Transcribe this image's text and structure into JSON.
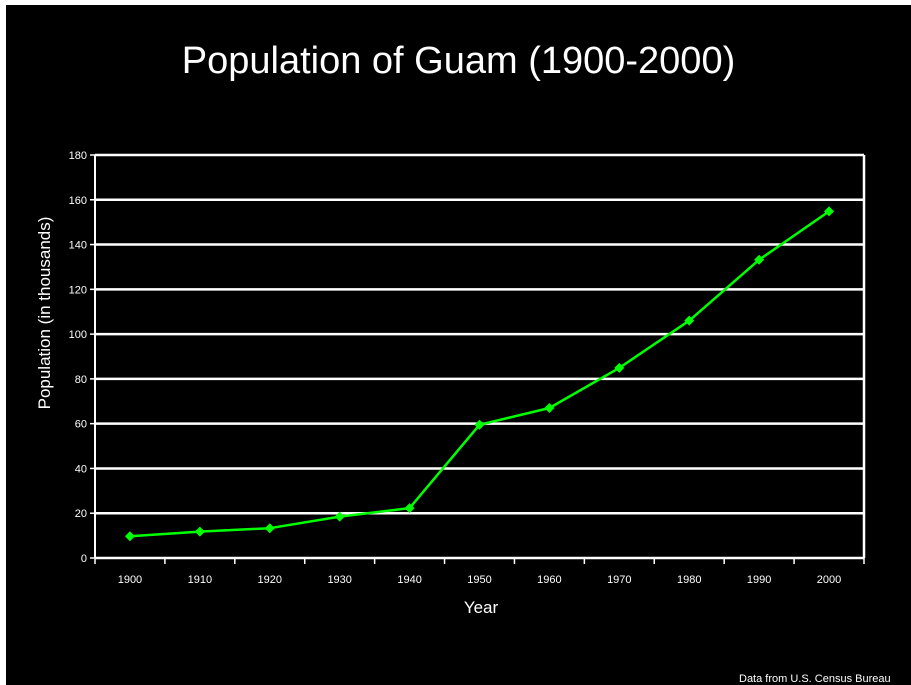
{
  "chart_data": {
    "type": "line",
    "title": "Population of Guam (1900-2000)",
    "xlabel": "Year",
    "ylabel": "Population (in thousands)",
    "x": [
      "1900",
      "1910",
      "1920",
      "1930",
      "1940",
      "1950",
      "1960",
      "1970",
      "1980",
      "1990",
      "2000"
    ],
    "series": [
      {
        "values": [
          9.7,
          11.8,
          13.3,
          18.5,
          22.3,
          59.5,
          67.0,
          84.9,
          106.0,
          133.2,
          154.8
        ]
      }
    ],
    "ylim": [
      0,
      180
    ],
    "yticks": [
      "0",
      "20",
      "40",
      "60",
      "80",
      "100",
      "120",
      "140",
      "160",
      "180"
    ],
    "grid": true,
    "colors": {
      "background": "#000000",
      "line": "#00ff00",
      "axis": "#ffffff",
      "grid": "#ffffff"
    }
  },
  "source_note": "Data from U.S. Census Bureau"
}
